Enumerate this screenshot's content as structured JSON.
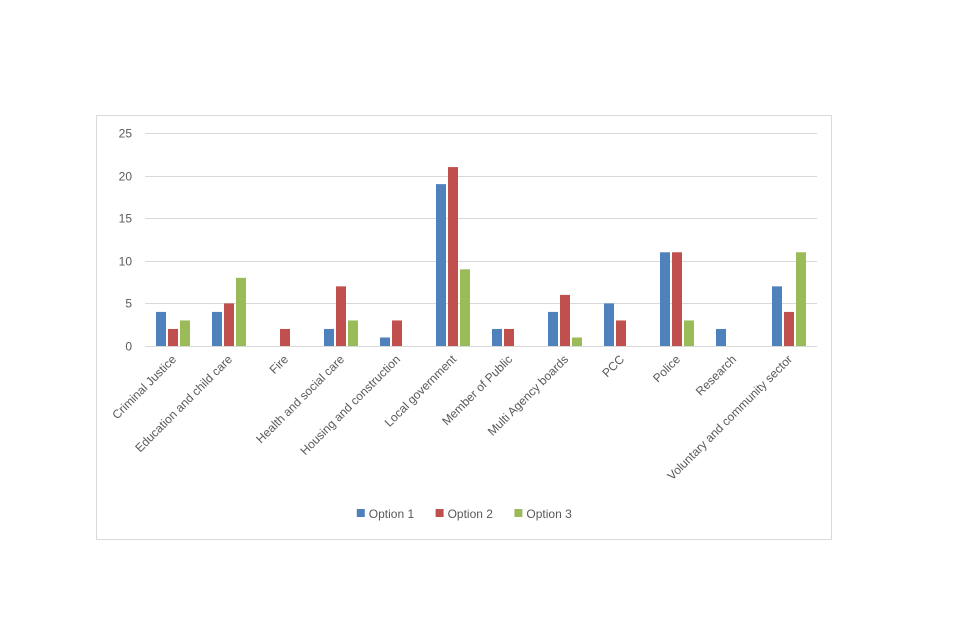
{
  "chart_data": {
    "type": "bar",
    "title": "",
    "xlabel": "",
    "ylabel": "",
    "ylim": [
      0,
      25
    ],
    "yticks": [
      0,
      5,
      10,
      15,
      20,
      25
    ],
    "grid": true,
    "legend_position": "bottom",
    "categories": [
      "Criminal Justice",
      "Education and child care",
      "Fire",
      "Health and social care",
      "Housing and construction",
      "Local government",
      "Member of Public",
      "Multi Agency boards",
      "PCC",
      "Police",
      "Research",
      "Voluntary and community sector"
    ],
    "series": [
      {
        "name": "Option 1",
        "color": "#4f81bd",
        "values": [
          4,
          4,
          0,
          2,
          1,
          19,
          2,
          4,
          5,
          11,
          2,
          7
        ]
      },
      {
        "name": "Option 2",
        "color": "#c0504d",
        "values": [
          2,
          5,
          2,
          7,
          3,
          21,
          2,
          6,
          3,
          11,
          0,
          4
        ]
      },
      {
        "name": "Option 3",
        "color": "#9bbb59",
        "values": [
          3,
          8,
          0,
          3,
          0,
          9,
          0,
          1,
          0,
          3,
          0,
          11
        ]
      }
    ]
  },
  "colors": {
    "gridline": "#d9d9d9",
    "axis_text": "#595959"
  }
}
